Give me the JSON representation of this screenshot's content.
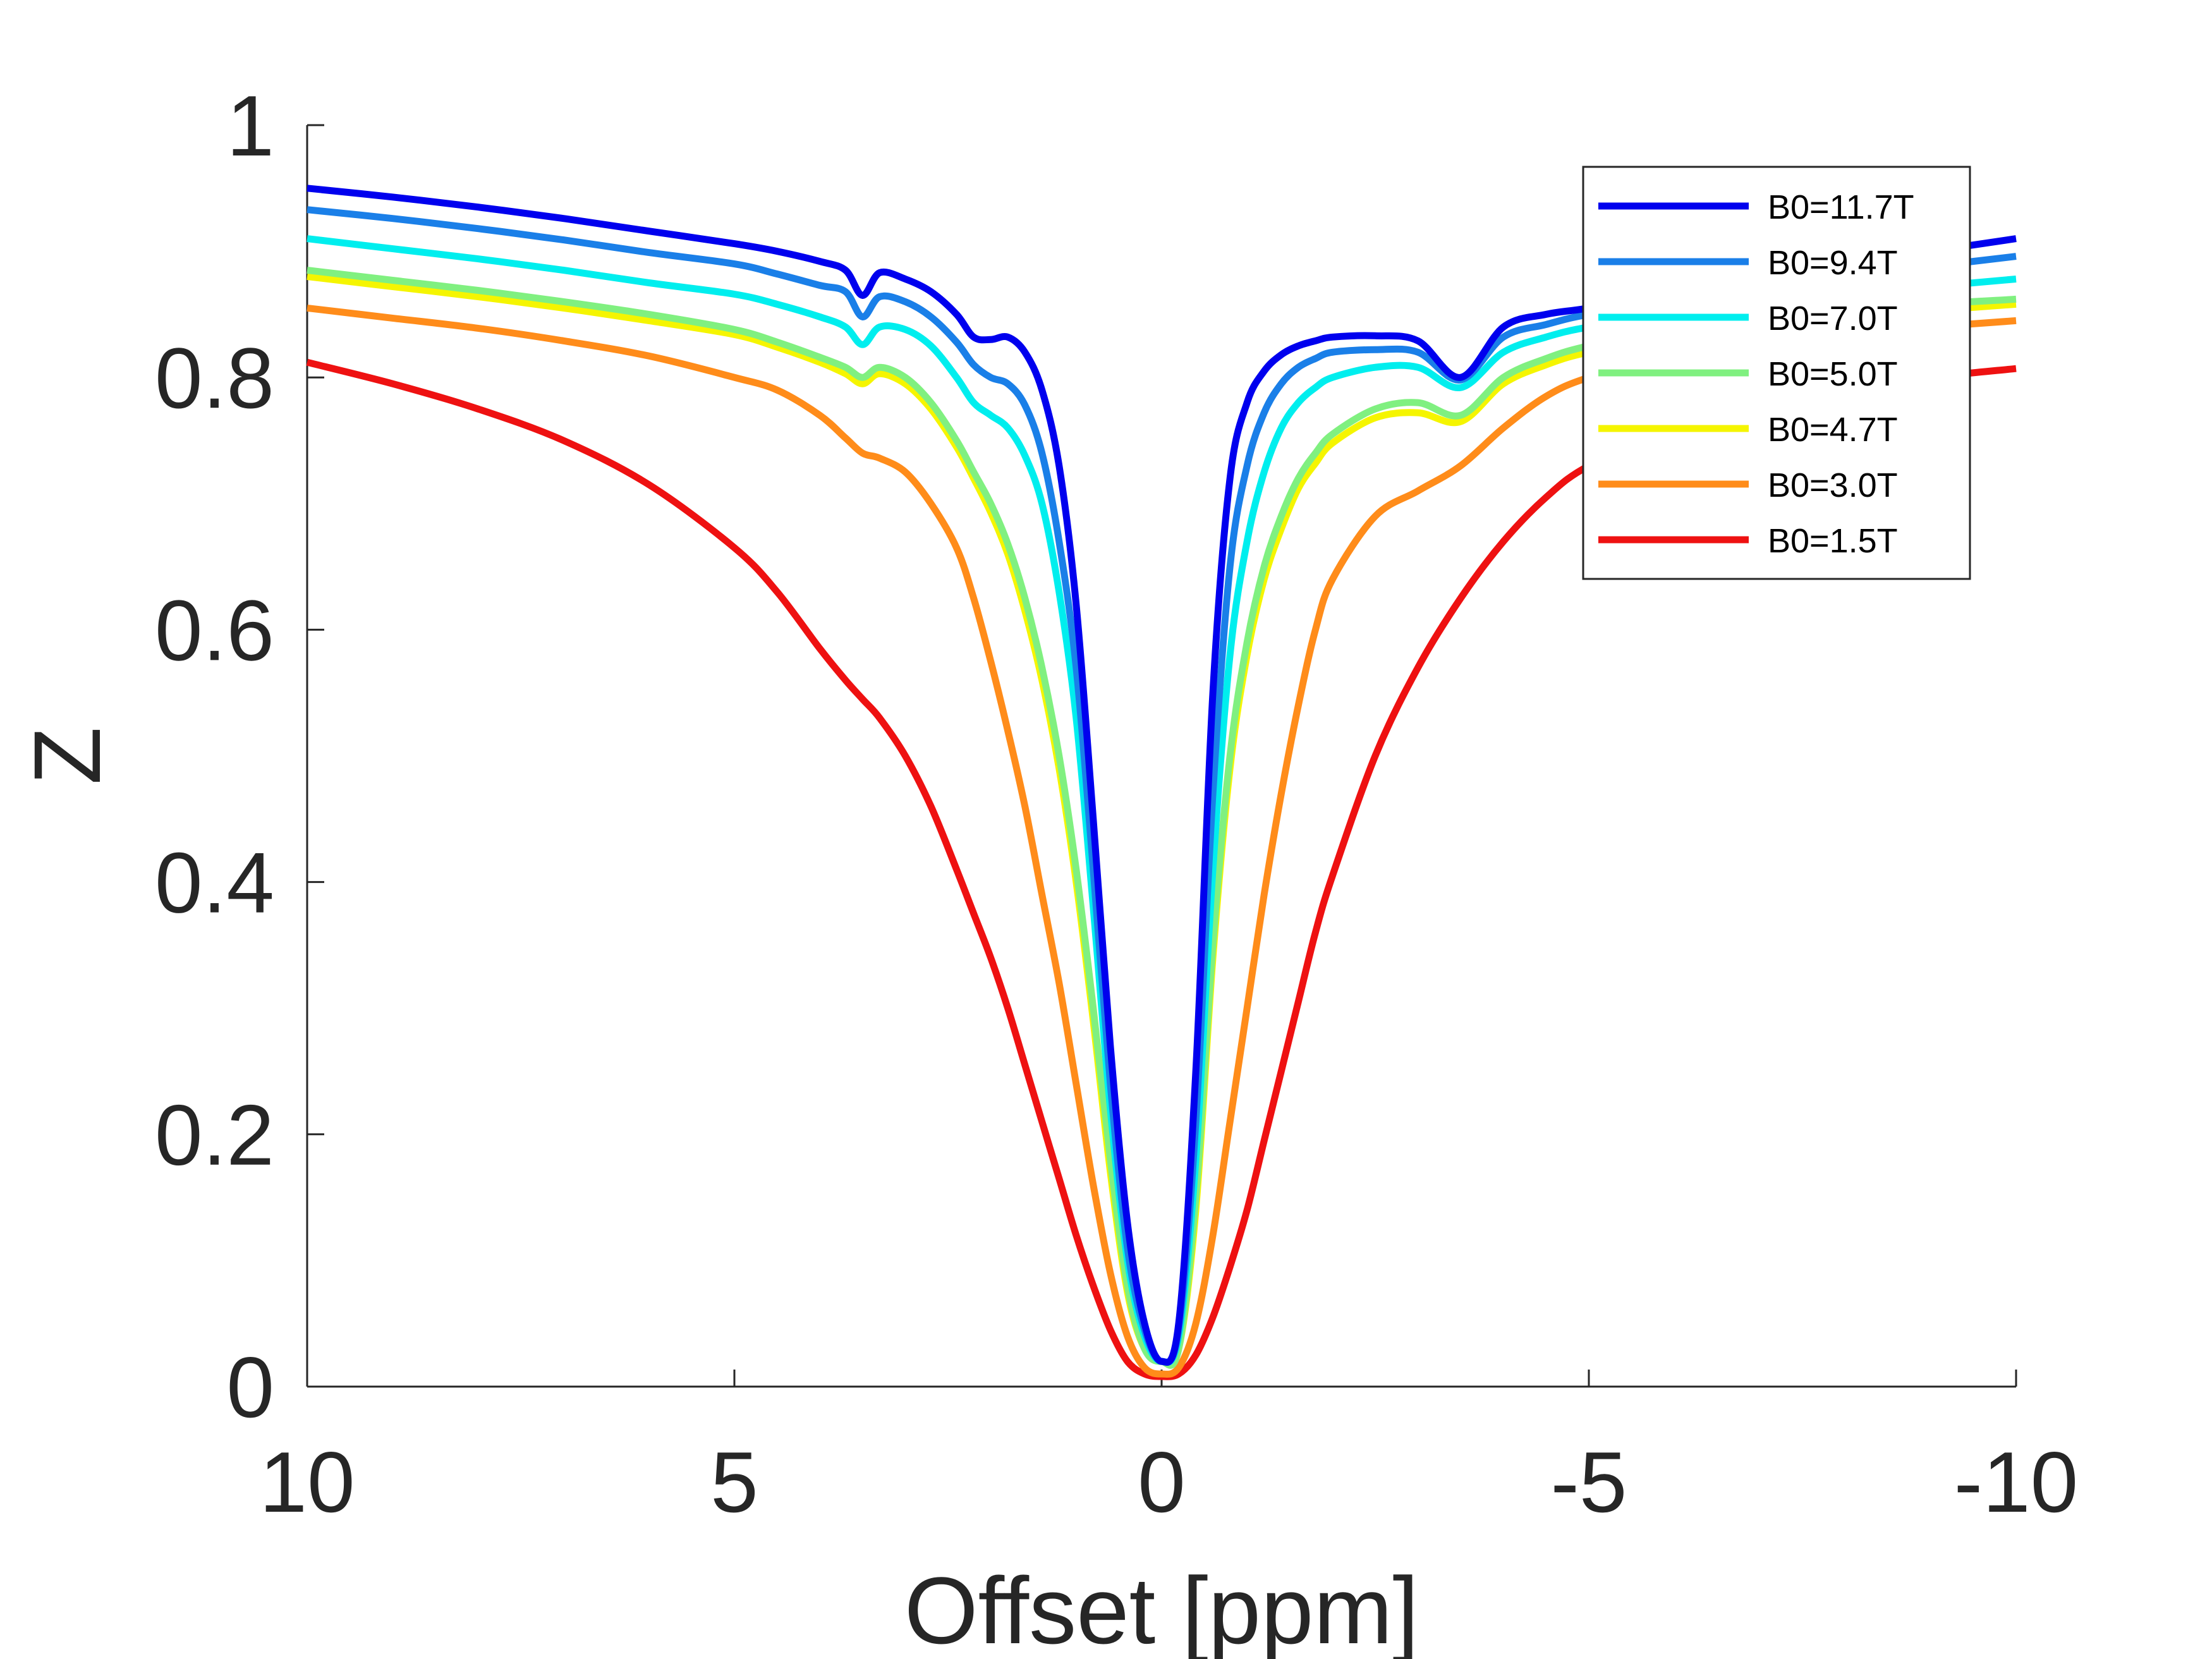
{
  "chart_data": {
    "type": "line",
    "title": "",
    "xlabel": "Offset [ppm]",
    "ylabel": "Z",
    "xlim": [
      10,
      -10
    ],
    "ylim": [
      0,
      1
    ],
    "x_reversed": true,
    "xticks": [
      10,
      5,
      0,
      -5,
      -10
    ],
    "xtick_labels": [
      "10",
      "5",
      "0",
      "-5",
      "-10"
    ],
    "yticks": [
      0,
      0.2,
      0.4,
      0.6,
      0.8,
      1
    ],
    "ytick_labels": [
      "0",
      "0.2",
      "0.4",
      "0.6",
      "0.8",
      "1"
    ],
    "grid": false,
    "legend_position": "top-right",
    "x": [
      10,
      9,
      8,
      7,
      6,
      5,
      4.5,
      4,
      3.7,
      3.5,
      3.3,
      3,
      2.7,
      2.4,
      2.2,
      2,
      1.8,
      1.6,
      1.4,
      1.2,
      1,
      0.8,
      0.6,
      0.4,
      0.2,
      0,
      -0.2,
      -0.4,
      -0.6,
      -0.8,
      -1,
      -1.2,
      -1.4,
      -1.6,
      -1.8,
      -2,
      -2.5,
      -3,
      -3.5,
      -4,
      -4.5,
      -5,
      -6,
      -7,
      -8,
      -9,
      -10
    ],
    "series": [
      {
        "name": "B0=11.7T",
        "color": "#0000ee",
        "values": [
          0.95,
          0.943,
          0.935,
          0.926,
          0.916,
          0.906,
          0.9,
          0.892,
          0.885,
          0.865,
          0.883,
          0.878,
          0.868,
          0.85,
          0.832,
          0.83,
          0.832,
          0.82,
          0.79,
          0.73,
          0.62,
          0.45,
          0.27,
          0.13,
          0.05,
          0.02,
          0.05,
          0.25,
          0.55,
          0.72,
          0.78,
          0.805,
          0.818,
          0.825,
          0.829,
          0.832,
          0.833,
          0.829,
          0.8,
          0.84,
          0.85,
          0.855,
          0.867,
          0.88,
          0.89,
          0.9,
          0.91
        ]
      },
      {
        "name": "B0=9.4T",
        "color": "#1a7fe8",
        "values": [
          0.933,
          0.926,
          0.918,
          0.909,
          0.899,
          0.89,
          0.882,
          0.873,
          0.868,
          0.848,
          0.864,
          0.86,
          0.848,
          0.828,
          0.81,
          0.8,
          0.795,
          0.778,
          0.74,
          0.67,
          0.57,
          0.41,
          0.24,
          0.11,
          0.045,
          0.02,
          0.045,
          0.21,
          0.47,
          0.65,
          0.73,
          0.772,
          0.795,
          0.808,
          0.815,
          0.82,
          0.822,
          0.82,
          0.798,
          0.832,
          0.842,
          0.85,
          0.86,
          0.87,
          0.88,
          0.888,
          0.896
        ]
      },
      {
        "name": "B0=7.0T",
        "color": "#00eeee",
        "values": [
          0.91,
          0.902,
          0.894,
          0.885,
          0.875,
          0.866,
          0.858,
          0.848,
          0.84,
          0.826,
          0.84,
          0.838,
          0.825,
          0.8,
          0.78,
          0.77,
          0.76,
          0.738,
          0.7,
          0.63,
          0.53,
          0.38,
          0.22,
          0.1,
          0.04,
          0.02,
          0.04,
          0.18,
          0.41,
          0.58,
          0.67,
          0.725,
          0.76,
          0.78,
          0.792,
          0.8,
          0.808,
          0.808,
          0.792,
          0.82,
          0.832,
          0.84,
          0.85,
          0.858,
          0.866,
          0.872,
          0.878
        ]
      },
      {
        "name": "B0=5.0T",
        "color": "#80f080",
        "values": [
          0.885,
          0.877,
          0.869,
          0.86,
          0.85,
          0.838,
          0.828,
          0.816,
          0.808,
          0.8,
          0.808,
          0.8,
          0.78,
          0.75,
          0.725,
          0.7,
          0.668,
          0.625,
          0.57,
          0.5,
          0.41,
          0.3,
          0.18,
          0.08,
          0.03,
          0.02,
          0.03,
          0.15,
          0.35,
          0.5,
          0.59,
          0.65,
          0.69,
          0.72,
          0.74,
          0.755,
          0.775,
          0.78,
          0.77,
          0.8,
          0.815,
          0.825,
          0.838,
          0.846,
          0.852,
          0.858,
          0.862
        ]
      },
      {
        "name": "B0=4.7T",
        "color": "#f5f500",
        "values": [
          0.88,
          0.872,
          0.864,
          0.855,
          0.845,
          0.834,
          0.824,
          0.812,
          0.803,
          0.795,
          0.803,
          0.795,
          0.775,
          0.745,
          0.72,
          0.693,
          0.66,
          0.615,
          0.56,
          0.49,
          0.4,
          0.29,
          0.17,
          0.075,
          0.03,
          0.02,
          0.03,
          0.14,
          0.34,
          0.49,
          0.58,
          0.64,
          0.68,
          0.712,
          0.732,
          0.748,
          0.768,
          0.772,
          0.765,
          0.795,
          0.81,
          0.82,
          0.832,
          0.84,
          0.847,
          0.853,
          0.858
        ]
      },
      {
        "name": "B0=3.0T",
        "color": "#ff8c1a",
        "values": [
          0.855,
          0.847,
          0.839,
          0.829,
          0.817,
          0.8,
          0.79,
          0.77,
          0.752,
          0.74,
          0.736,
          0.725,
          0.7,
          0.665,
          0.625,
          0.575,
          0.52,
          0.46,
          0.39,
          0.32,
          0.24,
          0.16,
          0.09,
          0.04,
          0.015,
          0.01,
          0.015,
          0.05,
          0.12,
          0.21,
          0.3,
          0.39,
          0.47,
          0.54,
          0.6,
          0.64,
          0.69,
          0.71,
          0.73,
          0.76,
          0.785,
          0.8,
          0.818,
          0.828,
          0.835,
          0.84,
          0.845
        ]
      },
      {
        "name": "B0=1.5T",
        "color": "#ee1111",
        "values": [
          0.812,
          0.795,
          0.775,
          0.75,
          0.715,
          0.665,
          0.63,
          0.585,
          0.56,
          0.545,
          0.53,
          0.5,
          0.46,
          0.41,
          0.375,
          0.34,
          0.3,
          0.255,
          0.21,
          0.165,
          0.12,
          0.08,
          0.045,
          0.02,
          0.01,
          0.008,
          0.01,
          0.025,
          0.055,
          0.095,
          0.14,
          0.195,
          0.25,
          0.305,
          0.36,
          0.405,
          0.5,
          0.57,
          0.625,
          0.67,
          0.705,
          0.73,
          0.76,
          0.778,
          0.79,
          0.8,
          0.807
        ]
      }
    ]
  }
}
